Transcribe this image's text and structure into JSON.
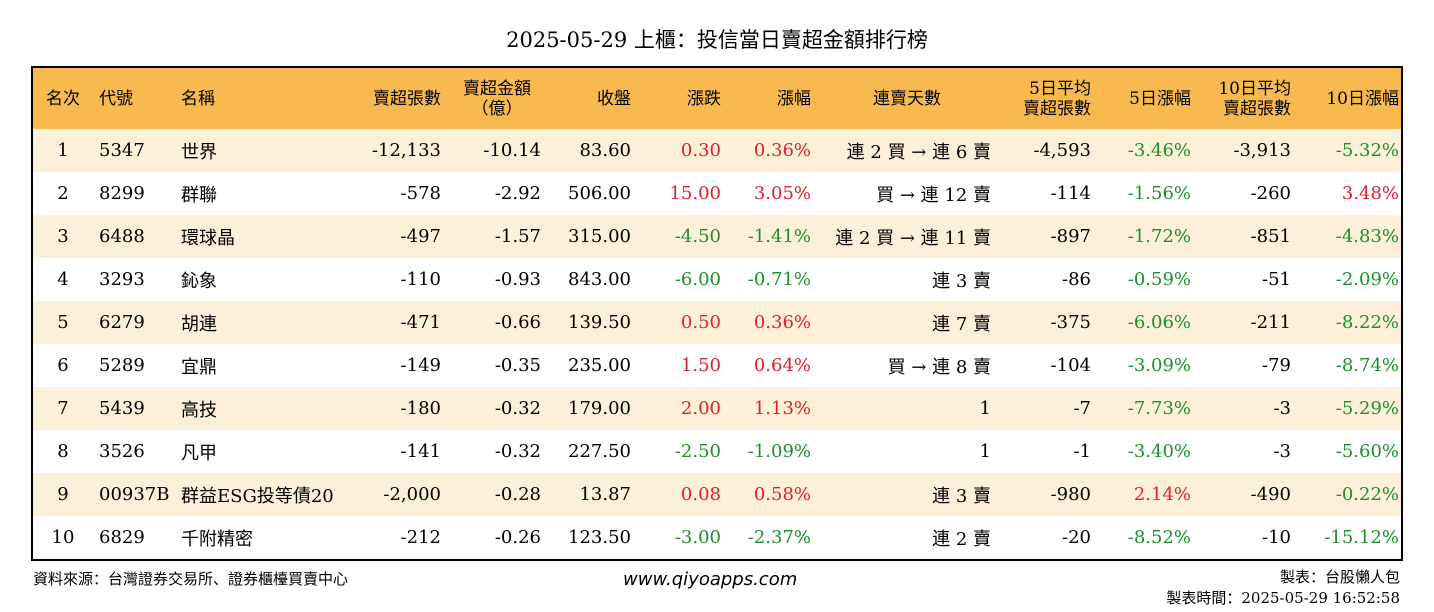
{
  "title": "2025-05-29 上櫃：投信當日賣超金額排行榜",
  "colors": {
    "header_bg": "#f8b94e",
    "row_alt_bg": "#fdf0d9",
    "up": "#e0202e",
    "down": "#1f8f2e"
  },
  "headers": {
    "rank": "名次",
    "code": "代號",
    "name": "名稱",
    "sell_shares": "賣超張數",
    "sell_amount_1": "賣超金額",
    "sell_amount_2": "（億）",
    "close": "收盤",
    "change": "漲跌",
    "change_pct": "漲幅",
    "streak": "連賣天數",
    "avg5_1": "5日平均",
    "avg5_2": "賣超張數",
    "pct5": "5日漲幅",
    "avg10_1": "10日平均",
    "avg10_2": "賣超張數",
    "pct10": "10日漲幅"
  },
  "rows": [
    {
      "rank": "1",
      "code": "5347",
      "name": "世界",
      "sell_shares": "-12,133",
      "sell_amount": "-10.14",
      "close": "83.60",
      "change": "0.30",
      "change_pct": "0.36%",
      "streak": "連 2 買 → 連 6 賣",
      "avg5": "-4,593",
      "pct5": "-3.46%",
      "avg10": "-3,913",
      "pct10": "-5.32%",
      "change_dir": "up",
      "pct5_dir": "down",
      "pct10_dir": "down"
    },
    {
      "rank": "2",
      "code": "8299",
      "name": "群聯",
      "sell_shares": "-578",
      "sell_amount": "-2.92",
      "close": "506.00",
      "change": "15.00",
      "change_pct": "3.05%",
      "streak": "買 → 連 12 賣",
      "avg5": "-114",
      "pct5": "-1.56%",
      "avg10": "-260",
      "pct10": "3.48%",
      "change_dir": "up",
      "pct5_dir": "down",
      "pct10_dir": "up"
    },
    {
      "rank": "3",
      "code": "6488",
      "name": "環球晶",
      "sell_shares": "-497",
      "sell_amount": "-1.57",
      "close": "315.00",
      "change": "-4.50",
      "change_pct": "-1.41%",
      "streak": "連 2 買 → 連 11 賣",
      "avg5": "-897",
      "pct5": "-1.72%",
      "avg10": "-851",
      "pct10": "-4.83%",
      "change_dir": "down",
      "pct5_dir": "down",
      "pct10_dir": "down"
    },
    {
      "rank": "4",
      "code": "3293",
      "name": "鈊象",
      "sell_shares": "-110",
      "sell_amount": "-0.93",
      "close": "843.00",
      "change": "-6.00",
      "change_pct": "-0.71%",
      "streak": "連 3 賣",
      "avg5": "-86",
      "pct5": "-0.59%",
      "avg10": "-51",
      "pct10": "-2.09%",
      "change_dir": "down",
      "pct5_dir": "down",
      "pct10_dir": "down"
    },
    {
      "rank": "5",
      "code": "6279",
      "name": "胡連",
      "sell_shares": "-471",
      "sell_amount": "-0.66",
      "close": "139.50",
      "change": "0.50",
      "change_pct": "0.36%",
      "streak": "連 7 賣",
      "avg5": "-375",
      "pct5": "-6.06%",
      "avg10": "-211",
      "pct10": "-8.22%",
      "change_dir": "up",
      "pct5_dir": "down",
      "pct10_dir": "down"
    },
    {
      "rank": "6",
      "code": "5289",
      "name": "宜鼎",
      "sell_shares": "-149",
      "sell_amount": "-0.35",
      "close": "235.00",
      "change": "1.50",
      "change_pct": "0.64%",
      "streak": "買 → 連 8 賣",
      "avg5": "-104",
      "pct5": "-3.09%",
      "avg10": "-79",
      "pct10": "-8.74%",
      "change_dir": "up",
      "pct5_dir": "down",
      "pct10_dir": "down"
    },
    {
      "rank": "7",
      "code": "5439",
      "name": "高技",
      "sell_shares": "-180",
      "sell_amount": "-0.32",
      "close": "179.00",
      "change": "2.00",
      "change_pct": "1.13%",
      "streak": "1",
      "avg5": "-7",
      "pct5": "-7.73%",
      "avg10": "-3",
      "pct10": "-5.29%",
      "change_dir": "up",
      "pct5_dir": "down",
      "pct10_dir": "down"
    },
    {
      "rank": "8",
      "code": "3526",
      "name": "凡甲",
      "sell_shares": "-141",
      "sell_amount": "-0.32",
      "close": "227.50",
      "change": "-2.50",
      "change_pct": "-1.09%",
      "streak": "1",
      "avg5": "-1",
      "pct5": "-3.40%",
      "avg10": "-3",
      "pct10": "-5.60%",
      "change_dir": "down",
      "pct5_dir": "down",
      "pct10_dir": "down"
    },
    {
      "rank": "9",
      "code": "00937B",
      "name": "群益ESG投等債20",
      "sell_shares": "-2,000",
      "sell_amount": "-0.28",
      "close": "13.87",
      "change": "0.08",
      "change_pct": "0.58%",
      "streak": "連 3 賣",
      "avg5": "-980",
      "pct5": "2.14%",
      "avg10": "-490",
      "pct10": "-0.22%",
      "change_dir": "up",
      "pct5_dir": "up",
      "pct10_dir": "down"
    },
    {
      "rank": "10",
      "code": "6829",
      "name": "千附精密",
      "sell_shares": "-212",
      "sell_amount": "-0.26",
      "close": "123.50",
      "change": "-3.00",
      "change_pct": "-2.37%",
      "streak": "連 2 賣",
      "avg5": "-20",
      "pct5": "-8.52%",
      "avg10": "-10",
      "pct10": "-15.12%",
      "change_dir": "down",
      "pct5_dir": "down",
      "pct10_dir": "down"
    }
  ],
  "footer": {
    "source": "資料來源：台灣證券交易所、證券櫃檯買賣中心",
    "website": "www.qiyoapps.com",
    "maker": "製表：台股懶人包",
    "made_time": "製表時間：2025-05-29 16:52:58"
  }
}
